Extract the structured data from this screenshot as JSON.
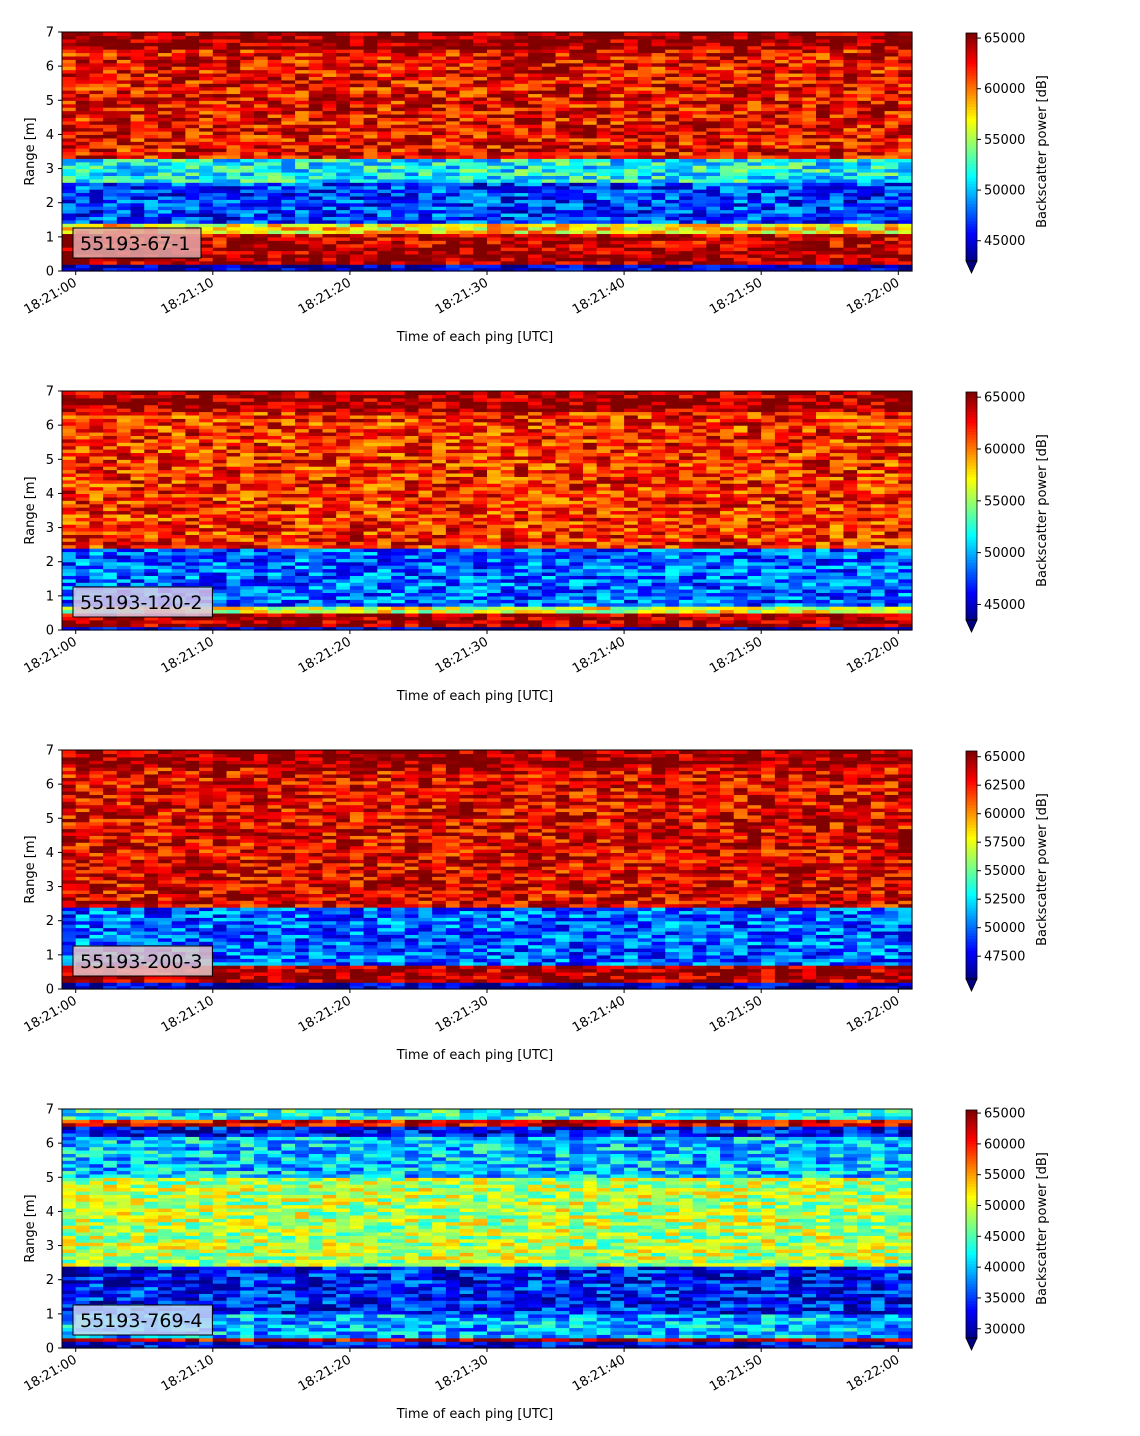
{
  "chart_data": [
    {
      "type": "heatmap",
      "annotation": "55193-67-1",
      "annotation_color": "#e0a8aa",
      "xlabel": "Time of each ping [UTC]",
      "ylabel": "Range [m]",
      "colorbar_label": "Backscatter power [dB]",
      "x_ticks": [
        "18:21:00",
        "18:21:10",
        "18:21:20",
        "18:21:30",
        "18:21:40",
        "18:21:50",
        "18:22:00"
      ],
      "x_range_s": [
        -1,
        61
      ],
      "y_ticks": [
        "0",
        "1",
        "2",
        "3",
        "4",
        "5",
        "6",
        "7"
      ],
      "y_range": [
        0,
        7
      ],
      "colorbar_ticks": [
        "45000",
        "50000",
        "55000",
        "60000",
        "65000"
      ],
      "colorbar_range": [
        43000,
        65500
      ],
      "colormap": "jet",
      "profile": [
        {
          "r0": 0.0,
          "r1": 0.25,
          "v": 0.05
        },
        {
          "r0": 0.25,
          "r1": 0.7,
          "v": 0.97
        },
        {
          "r0": 0.7,
          "r1": 1.1,
          "v": 0.93
        },
        {
          "r0": 1.1,
          "r1": 1.4,
          "v": 0.65
        },
        {
          "r0": 1.4,
          "r1": 2.6,
          "v": 0.18
        },
        {
          "r0": 2.6,
          "r1": 3.3,
          "v": 0.38
        },
        {
          "r0": 3.3,
          "r1": 6.5,
          "v": 0.88
        },
        {
          "r0": 6.5,
          "r1": 7.0,
          "v": 0.99
        }
      ]
    },
    {
      "type": "heatmap",
      "annotation": "55193-120-2",
      "annotation_color": "#d8c8e8",
      "xlabel": "Time of each ping [UTC]",
      "ylabel": "Range [m]",
      "colorbar_label": "Backscatter power [dB]",
      "x_ticks": [
        "18:21:00",
        "18:21:10",
        "18:21:20",
        "18:21:30",
        "18:21:40",
        "18:21:50",
        "18:22:00"
      ],
      "x_range_s": [
        -1,
        61
      ],
      "y_ticks": [
        "0",
        "1",
        "2",
        "3",
        "4",
        "5",
        "6",
        "7"
      ],
      "y_range": [
        0,
        7
      ],
      "colorbar_ticks": [
        "45000",
        "50000",
        "55000",
        "60000",
        "65000"
      ],
      "colorbar_range": [
        43500,
        65500
      ],
      "colormap": "jet",
      "profile": [
        {
          "r0": 0.0,
          "r1": 0.1,
          "v": 0.05
        },
        {
          "r0": 0.1,
          "r1": 0.5,
          "v": 0.97
        },
        {
          "r0": 0.5,
          "r1": 0.7,
          "v": 0.6
        },
        {
          "r0": 0.7,
          "r1": 2.4,
          "v": 0.22
        },
        {
          "r0": 2.4,
          "r1": 6.4,
          "v": 0.84
        },
        {
          "r0": 6.4,
          "r1": 7.0,
          "v": 0.97
        }
      ]
    },
    {
      "type": "heatmap",
      "annotation": "55193-200-3",
      "annotation_color": "#e8c4c8",
      "xlabel": "Time of each ping [UTC]",
      "ylabel": "Range [m]",
      "colorbar_label": "Backscatter power [dB]",
      "x_ticks": [
        "18:21:00",
        "18:21:10",
        "18:21:20",
        "18:21:30",
        "18:21:40",
        "18:21:50",
        "18:22:00"
      ],
      "x_range_s": [
        -1,
        61
      ],
      "y_ticks": [
        "0",
        "1",
        "2",
        "3",
        "4",
        "5",
        "6",
        "7"
      ],
      "y_range": [
        0,
        7
      ],
      "colorbar_ticks": [
        "47500",
        "50000",
        "52500",
        "55000",
        "57500",
        "60000",
        "62500",
        "65000"
      ],
      "colorbar_range": [
        45500,
        65500
      ],
      "colormap": "jet",
      "profile": [
        {
          "r0": 0.0,
          "r1": 0.25,
          "v": 0.05
        },
        {
          "r0": 0.25,
          "r1": 0.7,
          "v": 0.97
        },
        {
          "r0": 0.7,
          "r1": 2.4,
          "v": 0.22
        },
        {
          "r0": 2.4,
          "r1": 6.5,
          "v": 0.9
        },
        {
          "r0": 6.5,
          "r1": 7.0,
          "v": 0.99
        }
      ]
    },
    {
      "type": "heatmap",
      "annotation": "55193-769-4",
      "annotation_color": "#c8d8f4",
      "xlabel": "Time of each ping [UTC]",
      "ylabel": "Range [m]",
      "colorbar_label": "Backscatter power [dB]",
      "x_ticks": [
        "18:21:00",
        "18:21:10",
        "18:21:20",
        "18:21:30",
        "18:21:40",
        "18:21:50",
        "18:22:00"
      ],
      "x_range_s": [
        -1,
        61
      ],
      "y_ticks": [
        "0",
        "1",
        "2",
        "3",
        "4",
        "5",
        "6",
        "7"
      ],
      "y_range": [
        0,
        7
      ],
      "colorbar_ticks": [
        "30000",
        "35000",
        "40000",
        "45000",
        "50000",
        "55000",
        "60000",
        "65000"
      ],
      "colorbar_range": [
        28500,
        65500
      ],
      "colormap": "jet",
      "profile": [
        {
          "r0": 0.0,
          "r1": 0.2,
          "v": 0.1
        },
        {
          "r0": 0.2,
          "r1": 0.35,
          "v": 0.92
        },
        {
          "r0": 0.35,
          "r1": 1.0,
          "v": 0.3
        },
        {
          "r0": 1.0,
          "r1": 2.4,
          "v": 0.15
        },
        {
          "r0": 2.4,
          "r1": 5.0,
          "v": 0.55
        },
        {
          "r0": 5.0,
          "r1": 6.2,
          "v": 0.32
        },
        {
          "r0": 6.2,
          "r1": 6.5,
          "v": 0.12
        },
        {
          "r0": 6.5,
          "r1": 6.75,
          "v": 0.88
        },
        {
          "r0": 6.75,
          "r1": 7.0,
          "v": 0.4
        }
      ]
    }
  ]
}
